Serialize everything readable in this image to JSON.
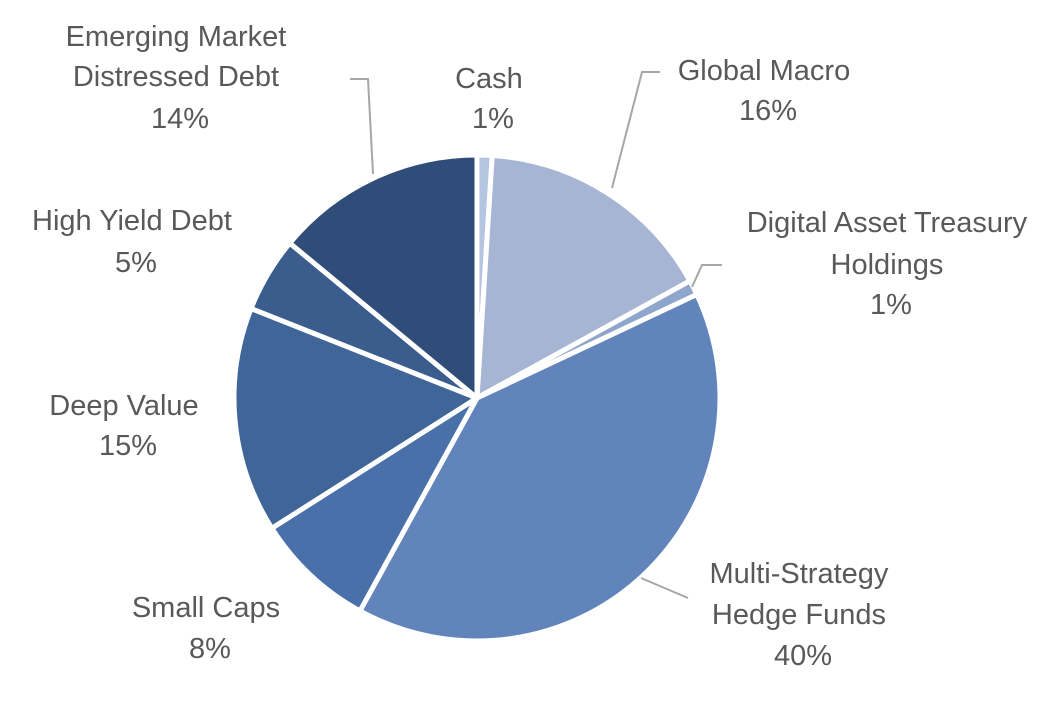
{
  "chart_data": {
    "type": "pie",
    "title": "",
    "start_angle_deg": 0,
    "direction": "clockwise",
    "slices": [
      {
        "name": "Cash",
        "value": 1,
        "label": "1%",
        "color": "#b4c5e2"
      },
      {
        "name": "Global Macro",
        "value": 16,
        "label": "16%",
        "color": "#a5b5d3"
      },
      {
        "name": "Digital Asset Treasury Holdings",
        "value": 1,
        "label": "1%",
        "color": "#8fa6cc"
      },
      {
        "name": "Multi-Strategy Hedge Funds",
        "value": 40,
        "label": "40%",
        "color": "#6185bb"
      },
      {
        "name": "Small Caps",
        "value": 8,
        "label": "8%",
        "color": "#4a70aa"
      },
      {
        "name": "Deep Value",
        "value": 15,
        "label": "15%",
        "color": "#3f6599"
      },
      {
        "name": "High Yield Debt",
        "value": 5,
        "label": "5%",
        "color": "#3a5d8d"
      },
      {
        "name": "Emerging Market Distressed Debt",
        "value": 14,
        "label": "14%",
        "color": "#2f4d78"
      }
    ],
    "label_lines": {
      "cash": [
        "Cash",
        "1%"
      ],
      "global_macro": [
        "Global Macro",
        "16%"
      ],
      "digital_asset": [
        "Digital Asset Treasury",
        "Holdings",
        "1%"
      ],
      "multi_strategy": [
        "Multi-Strategy",
        "Hedge Funds",
        "40%"
      ],
      "small_caps": [
        "Small Caps",
        "8%"
      ],
      "deep_value": [
        "Deep Value",
        "15%"
      ],
      "high_yield": [
        "High Yield Debt",
        "5%"
      ],
      "emerging": [
        "Emerging Market",
        "Distressed Debt",
        "14%"
      ]
    }
  }
}
